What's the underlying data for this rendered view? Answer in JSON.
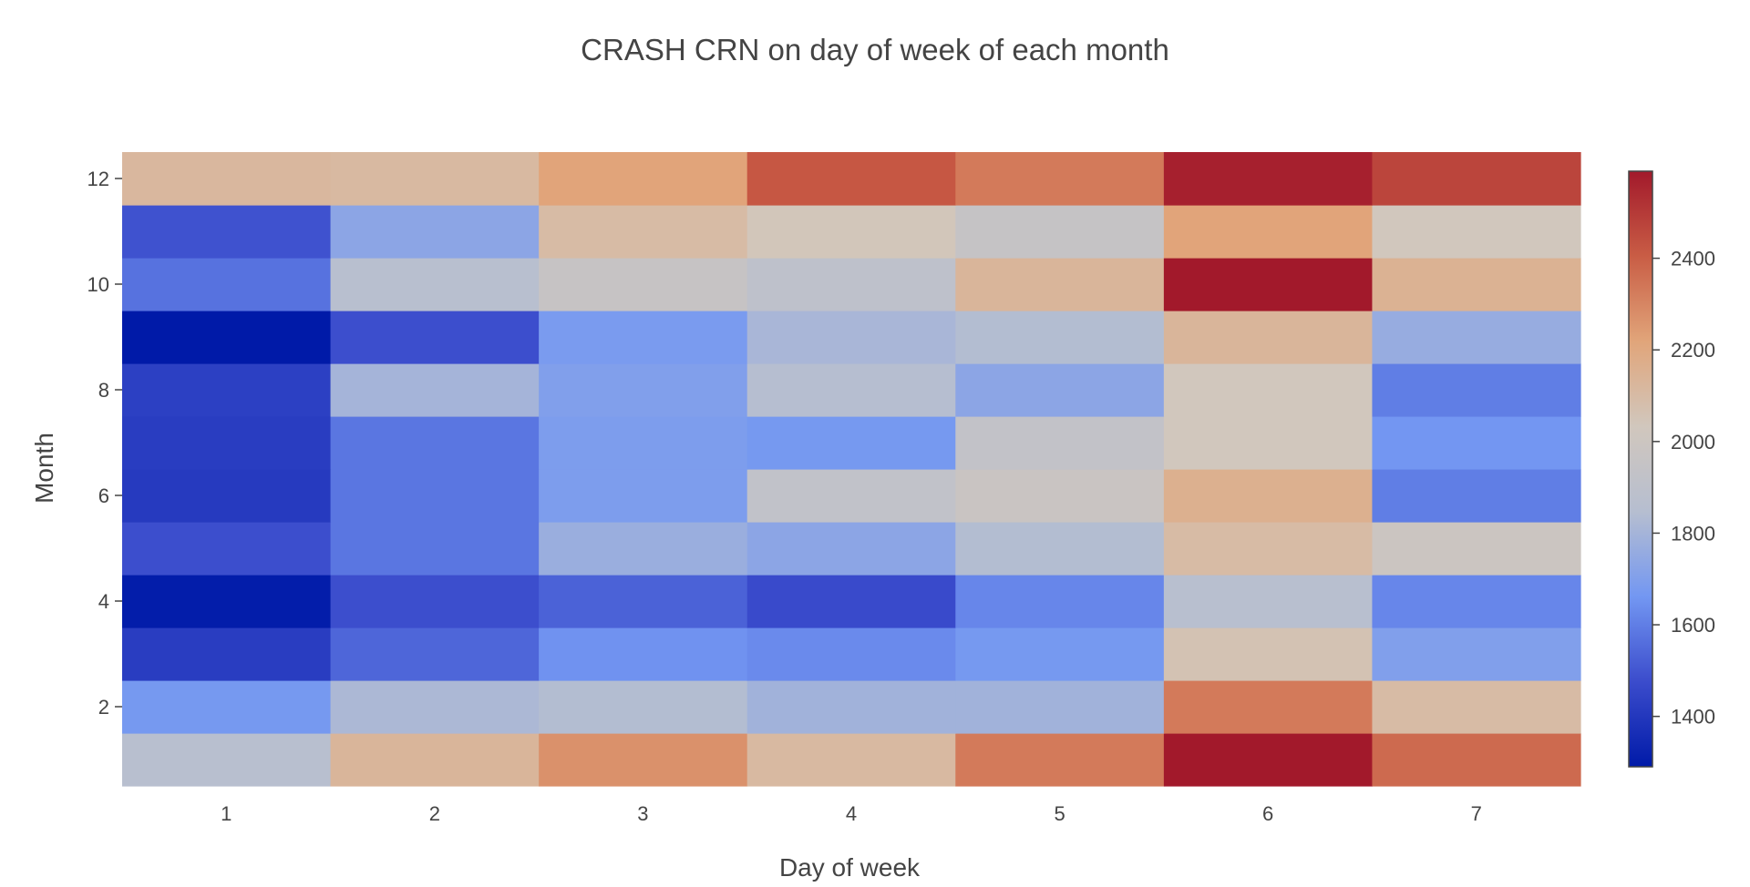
{
  "chart_data": {
    "type": "heatmap",
    "title": "CRASH CRN on day of week of each month",
    "xlabel": "Day of week",
    "ylabel": "Month",
    "x": [
      1,
      2,
      3,
      4,
      5,
      6,
      7
    ],
    "y": [
      1,
      2,
      3,
      4,
      5,
      6,
      7,
      8,
      9,
      10,
      11,
      12
    ],
    "z": [
      [
        1860,
        2130,
        2270,
        2110,
        2330,
        2590,
        2370
      ],
      [
        1670,
        1820,
        1840,
        1790,
        1790,
        2330,
        2100
      ],
      [
        1420,
        1540,
        1650,
        1630,
        1670,
        2060,
        1700
      ],
      [
        1300,
        1480,
        1530,
        1470,
        1620,
        1860,
        1620
      ],
      [
        1480,
        1580,
        1770,
        1730,
        1840,
        2100,
        1990
      ],
      [
        1410,
        1580,
        1690,
        1920,
        1980,
        2160,
        1600
      ],
      [
        1420,
        1580,
        1690,
        1670,
        1930,
        2030,
        1660
      ],
      [
        1430,
        1800,
        1700,
        1850,
        1730,
        2030,
        1600
      ],
      [
        1290,
        1480,
        1680,
        1810,
        1840,
        2130,
        1760
      ],
      [
        1570,
        1860,
        1960,
        1900,
        2130,
        2590,
        2150
      ],
      [
        1490,
        1730,
        2100,
        2040,
        1950,
        2220,
        2030
      ],
      [
        2120,
        2110,
        2220,
        2420,
        2330,
        2570,
        2470
      ]
    ],
    "zmin": 1290,
    "zmax": 2590,
    "xticks": [
      "1",
      "2",
      "3",
      "4",
      "5",
      "6",
      "7"
    ],
    "yticks": [
      "2",
      "4",
      "6",
      "8",
      "10",
      "12"
    ],
    "colorbar_ticks": [
      "1400",
      "1600",
      "1800",
      "2000",
      "2200",
      "2400"
    ],
    "colorscale": [
      "#001aa8",
      "#3b4ccc",
      "#7397f2",
      "#b6bed0",
      "#d1c7bd",
      "#e1a57a",
      "#c95d45",
      "#a2192b"
    ]
  }
}
